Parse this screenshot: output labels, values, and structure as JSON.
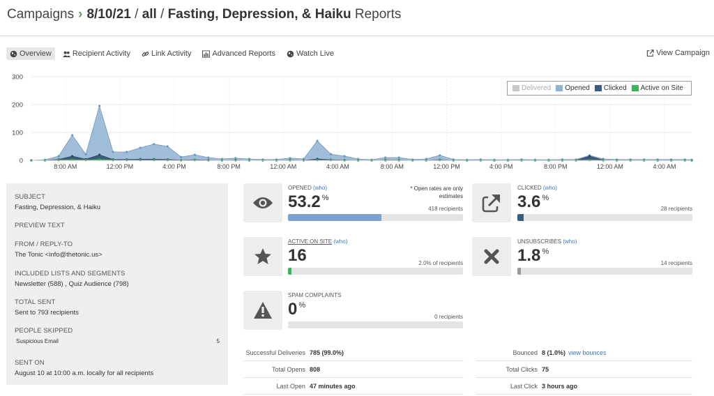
{
  "breadcrumb": {
    "root": "Campaigns",
    "chevron": "›",
    "date": "8/10/21",
    "sep1": "/",
    "segment": "all",
    "sep2": "/",
    "campaign": "Fasting, Depression, & Haiku",
    "suffix": "Reports"
  },
  "tabs": [
    {
      "label": "Overview",
      "icon": "globe-icon",
      "active": true
    },
    {
      "label": "Recipient Activity",
      "icon": "users-icon"
    },
    {
      "label": "Link Activity",
      "icon": "link-icon"
    },
    {
      "label": "Advanced Reports",
      "icon": "bar-chart-icon"
    },
    {
      "label": "Watch Live",
      "icon": "globe-icon"
    }
  ],
  "view_campaign": "View Campaign",
  "chart_data": {
    "type": "area",
    "y_ticks": [
      "300",
      "200",
      "100",
      "0"
    ],
    "ylim": [
      0,
      300
    ],
    "x_ticks": [
      "8:00 AM",
      "12:00 PM",
      "4:00 PM",
      "8:00 PM",
      "12:00 AM",
      "4:00 AM",
      "8:00 AM",
      "12:00 PM",
      "4:00 PM",
      "8:00 PM",
      "12:00 AM",
      "4:00 AM"
    ],
    "x_hours": [
      8,
      12,
      16,
      20,
      24,
      28,
      32,
      36,
      40,
      44,
      48,
      52
    ],
    "xlim": [
      5.5,
      54
    ],
    "legend": [
      {
        "name": "Delivered",
        "color": "#c8c8c8"
      },
      {
        "name": "Opened",
        "color": "#8fb2d4"
      },
      {
        "name": "Clicked",
        "color": "#3d5a80"
      },
      {
        "name": "Active on Site",
        "color": "#3bb55a"
      }
    ],
    "x": [
      5.5,
      6.5,
      7.5,
      8.5,
      9.5,
      10.5,
      11.5,
      12.5,
      13.5,
      14.5,
      15.5,
      16.5,
      17.5,
      18.5,
      19.5,
      20.5,
      21.5,
      22.5,
      23.5,
      24.5,
      25.5,
      26.5,
      27.5,
      28.5,
      29.5,
      30.5,
      31.5,
      32.5,
      33.5,
      34.5,
      35.5,
      36.5,
      37.5,
      38.5,
      39.5,
      40.5,
      41.5,
      42.5,
      43.5,
      44.5,
      45.5,
      46.5,
      47.5,
      48.5,
      49.5,
      50.5,
      51.5,
      52.5,
      53.5,
      54
    ],
    "series": [
      {
        "name": "Opened",
        "values": [
          0,
          2,
          15,
          90,
          22,
          195,
          30,
          30,
          45,
          58,
          50,
          12,
          20,
          10,
          5,
          8,
          5,
          3,
          3,
          8,
          5,
          70,
          22,
          15,
          5,
          2,
          10,
          10,
          3,
          5,
          18,
          3,
          2,
          3,
          2,
          2,
          3,
          2,
          2,
          3,
          3,
          18,
          5,
          3,
          3,
          3,
          3,
          3,
          3,
          2
        ]
      },
      {
        "name": "Clicked",
        "values": [
          0,
          0,
          3,
          15,
          4,
          20,
          3,
          3,
          4,
          4,
          3,
          1,
          2,
          1,
          0,
          1,
          0,
          0,
          0,
          1,
          0,
          5,
          2,
          1,
          0,
          0,
          1,
          1,
          0,
          0,
          2,
          0,
          0,
          0,
          0,
          0,
          0,
          0,
          0,
          0,
          0,
          15,
          1,
          0,
          0,
          0,
          0,
          0,
          0,
          0
        ]
      },
      {
        "name": "Active on Site",
        "values": [
          0,
          0,
          1,
          3,
          1,
          4,
          1,
          1,
          1,
          1,
          1,
          0,
          1,
          0,
          0,
          0,
          0,
          0,
          0,
          0,
          0,
          1,
          1,
          0,
          0,
          0,
          0,
          0,
          0,
          0,
          1,
          0,
          0,
          0,
          0,
          0,
          0,
          0,
          0,
          0,
          0,
          1,
          0,
          0,
          0,
          0,
          0,
          0,
          0,
          0
        ]
      }
    ]
  },
  "info": {
    "subject_label": "SUBJECT",
    "subject": "Fasting, Depression, & Haiku",
    "preview_label": "PREVIEW TEXT",
    "from_label": "FROM / REPLY-TO",
    "from": "The Tonic <info@thetonic.us>",
    "lists_label": "INCLUDED LISTS AND SEGMENTS",
    "lists": "Newsletter (588) , Quiz Audience (798)",
    "total_sent_label": "TOTAL SENT",
    "total_sent": "Sent to 793 recipients",
    "skipped_label": "PEOPLE SKIPPED",
    "skipped_reason": "Suspicious Email",
    "skipped_count": "5",
    "sent_on_label": "SENT ON",
    "sent_on": "August 10 at 10:00 a.m. locally for all recipients"
  },
  "metrics": {
    "opened": {
      "label": "OPENED",
      "who": "(who)",
      "value": "53.2",
      "unit": "%",
      "sub": "418 recipients",
      "note1": "* Open rates are only",
      "note2": "estimates",
      "fill": 0.532,
      "color": "#7ba3cf",
      "icon": "eye-icon"
    },
    "clicked": {
      "label": "CLICKED",
      "who": "(who)",
      "value": "3.6",
      "unit": "%",
      "sub": "28 recipients",
      "fill": 0.036,
      "color": "#3d5a80",
      "icon": "external-link-icon"
    },
    "active": {
      "label": "ACTIVE ON SITE",
      "who": "(who)",
      "value": "16",
      "unit": "",
      "sub": "2.0% of recipients",
      "fill": 0.02,
      "color": "#3bb55a",
      "icon": "star-icon"
    },
    "unsubscribes": {
      "label": "UNSUBSCRIBES",
      "who": "(who)",
      "value": "1.8",
      "unit": "%",
      "sub": "14 recipients",
      "fill": 0.018,
      "color": "#999999",
      "icon": "x-icon"
    },
    "spam": {
      "label": "SPAM COMPLAINTS",
      "value": "0",
      "unit": "%",
      "sub": "0 recipients",
      "fill": 0,
      "color": "#999999",
      "icon": "warning-icon"
    }
  },
  "stats": {
    "deliveries_label": "Successful Deliveries",
    "deliveries": "785 (99.0%)",
    "opens_label": "Total Opens",
    "opens": "808",
    "last_open_label": "Last Open",
    "last_open": "47 minutes ago",
    "bounced_label": "Bounced",
    "bounced": "8 (1.0%)",
    "view_bounces": "view bounces",
    "clicks_label": "Total Clicks",
    "clicks": "75",
    "last_click_label": "Last Click",
    "last_click": "3 hours ago"
  }
}
